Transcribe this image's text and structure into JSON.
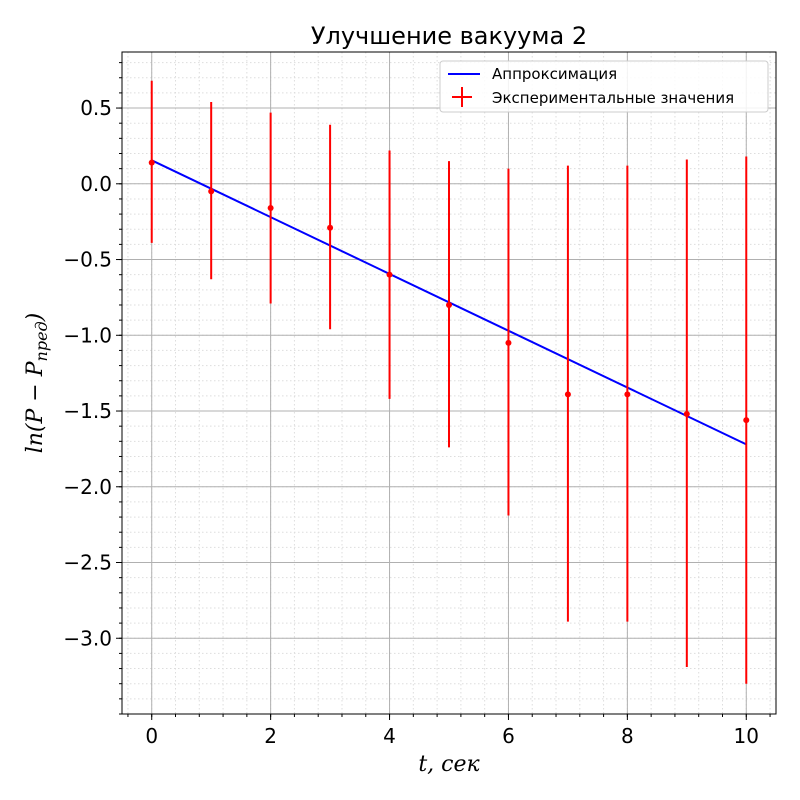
{
  "chart_data": {
    "type": "scatter",
    "title": "Улучшение вакуума 2",
    "xlabel": "t, сек",
    "ylabel": "ln(P − P",
    "ylabel_subscript": "пред",
    "ylabel_suffix": ")",
    "xlim": [
      -0.5,
      10.5
    ],
    "ylim": [
      -3.5,
      0.87
    ],
    "x_ticks": [
      0,
      2,
      4,
      6,
      8,
      10
    ],
    "y_ticks": [
      0.5,
      0.0,
      -0.5,
      -1.0,
      -1.5,
      -2.0,
      -2.5,
      -3.0
    ],
    "x_tick_labels": [
      "0",
      "2",
      "4",
      "6",
      "8",
      "10"
    ],
    "y_tick_labels": [
      "0.5",
      "0.0",
      "−0.5",
      "−1.0",
      "−1.5",
      "−2.0",
      "−2.5",
      "−3.0"
    ],
    "grid": true,
    "minor_grid": true,
    "legend_position": "top-right",
    "series": [
      {
        "name": "Аппроксимация",
        "kind": "line",
        "color": "#0000ff",
        "x": [
          0,
          10
        ],
        "y": [
          0.155,
          -1.72
        ]
      },
      {
        "name": "Экспериментальные значения",
        "kind": "errorbar",
        "color": "#ff0000",
        "x": [
          0,
          1,
          2,
          3,
          4,
          5,
          6,
          7,
          8,
          9,
          10
        ],
        "y": [
          0.14,
          -0.05,
          -0.16,
          -0.29,
          -0.6,
          -0.8,
          -1.05,
          -1.39,
          -1.39,
          -1.52,
          -1.56
        ],
        "err_low": [
          -0.39,
          -0.63,
          -0.79,
          -0.96,
          -1.42,
          -1.74,
          -2.19,
          -2.89,
          -2.89,
          -3.19,
          -3.3
        ],
        "err_high": [
          0.68,
          0.54,
          0.47,
          0.39,
          0.22,
          0.15,
          0.1,
          0.12,
          0.12,
          0.16,
          0.18
        ]
      }
    ]
  }
}
